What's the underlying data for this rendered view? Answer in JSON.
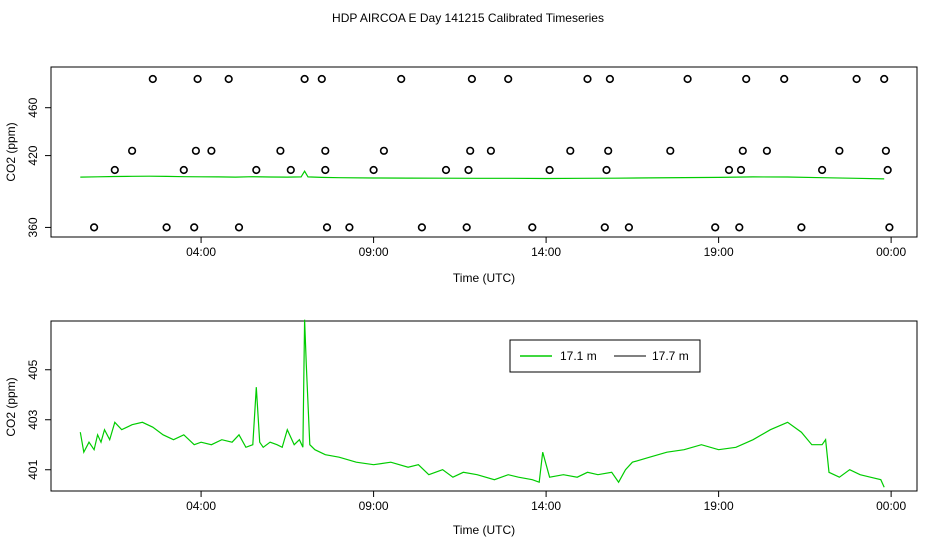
{
  "title": "HDP AIRCOA E  Day 141215  Calibrated Timeseries",
  "chart_data": [
    {
      "type": "scatter",
      "xlabel": "Time (UTC)",
      "ylabel": "CO2 (ppm)",
      "x_unit": "hours since 00:00 UTC",
      "xlim": [
        -0.35,
        24.75
      ],
      "ylim": [
        352,
        494
      ],
      "xticks": [
        4,
        9,
        14,
        19,
        24
      ],
      "xtick_labels": [
        "04:00",
        "09:00",
        "14:00",
        "19:00",
        "00:00"
      ],
      "yticks": [
        360,
        420,
        460
      ],
      "ytick_labels": [
        "360",
        "420",
        "460"
      ],
      "grid": false,
      "line_color": "#00cc00",
      "marker_color": "#000000",
      "line_series": {
        "name": "17.1 m",
        "x": [
          0.5,
          1.0,
          1.5,
          2.0,
          2.5,
          3.0,
          3.5,
          4.0,
          4.5,
          5.0,
          5.5,
          6.0,
          6.5,
          6.9,
          7.0,
          7.1,
          7.5,
          8.0,
          9.0,
          10.0,
          11.0,
          12.0,
          13.0,
          14.0,
          15.0,
          16.0,
          17.0,
          18.0,
          19.0,
          20.0,
          21.0,
          22.0,
          23.0,
          23.8
        ],
        "y": [
          402.0,
          402.3,
          402.5,
          402.7,
          402.8,
          402.6,
          402.4,
          402.3,
          402.2,
          402.0,
          402.4,
          402.1,
          402.0,
          402.2,
          407.0,
          402.2,
          401.8,
          401.5,
          401.3,
          401.2,
          401.1,
          401.0,
          401.0,
          400.9,
          401.0,
          401.1,
          401.4,
          401.6,
          401.8,
          402.2,
          402.1,
          401.5,
          401.0,
          400.5
        ]
      },
      "marker_series": {
        "type": "circles",
        "x": [
          0.9,
          1.5,
          2.0,
          2.6,
          3.0,
          3.5,
          3.8,
          3.85,
          3.9,
          4.3,
          4.8,
          5.1,
          5.6,
          6.3,
          6.6,
          7.0,
          7.5,
          7.6,
          7.6,
          7.65,
          8.3,
          9.0,
          9.3,
          9.8,
          10.4,
          11.1,
          11.7,
          11.75,
          11.8,
          11.85,
          12.4,
          12.9,
          13.6,
          14.1,
          14.7,
          15.2,
          15.7,
          15.75,
          15.8,
          15.85,
          16.4,
          17.6,
          18.1,
          18.9,
          19.3,
          19.6,
          19.65,
          19.7,
          19.8,
          20.4,
          20.9,
          21.4,
          22.0,
          22.5,
          23.0,
          23.8,
          23.85,
          23.9,
          23.95
        ]
      }
    },
    {
      "type": "line",
      "xlabel": "Time (UTC)",
      "ylabel": "CO2 (ppm)",
      "x_unit": "hours since 00:00 UTC",
      "xlim": [
        -0.35,
        24.75
      ],
      "ylim": [
        400.15,
        406.95
      ],
      "xticks": [
        4,
        9,
        14,
        19,
        24
      ],
      "xtick_labels": [
        "04:00",
        "09:00",
        "14:00",
        "19:00",
        "00:00"
      ],
      "yticks": [
        401,
        403,
        405
      ],
      "ytick_labels": [
        "401",
        "403",
        "405"
      ],
      "grid": false,
      "legend_position": "top-right",
      "series": [
        {
          "name": "17.1 m",
          "color": "#00cc00",
          "x": [
            0.5,
            0.6,
            0.75,
            0.9,
            1.0,
            1.1,
            1.2,
            1.35,
            1.5,
            1.7,
            2.0,
            2.3,
            2.6,
            2.9,
            3.2,
            3.5,
            3.8,
            4.0,
            4.3,
            4.6,
            4.9,
            5.1,
            5.3,
            5.5,
            5.6,
            5.7,
            5.8,
            6.0,
            6.2,
            6.35,
            6.5,
            6.7,
            6.85,
            6.95,
            7.0,
            7.05,
            7.15,
            7.3,
            7.6,
            8.0,
            8.5,
            9.0,
            9.5,
            10.0,
            10.3,
            10.6,
            11.0,
            11.3,
            11.6,
            12.0,
            12.5,
            12.9,
            13.2,
            13.6,
            13.8,
            13.9,
            14.1,
            14.5,
            14.9,
            15.2,
            15.5,
            15.9,
            16.1,
            16.3,
            16.5,
            17.0,
            17.5,
            18.0,
            18.5,
            19.0,
            19.5,
            20.0,
            20.5,
            21.0,
            21.4,
            21.7,
            22.0,
            22.1,
            22.2,
            22.5,
            22.8,
            23.1,
            23.4,
            23.7,
            23.8
          ],
          "y": [
            402.5,
            401.7,
            402.1,
            401.8,
            402.4,
            402.1,
            402.6,
            402.2,
            402.9,
            402.6,
            402.8,
            402.9,
            402.7,
            402.4,
            402.2,
            402.4,
            402.0,
            402.1,
            402.0,
            402.2,
            402.1,
            402.4,
            401.9,
            402.0,
            404.3,
            402.1,
            401.9,
            402.1,
            402.0,
            401.9,
            402.6,
            402.0,
            402.2,
            401.9,
            407.0,
            405.2,
            402.0,
            401.8,
            401.6,
            401.5,
            401.3,
            401.2,
            401.3,
            401.1,
            401.2,
            400.8,
            401.0,
            400.7,
            400.9,
            400.8,
            400.6,
            400.8,
            400.7,
            400.6,
            400.5,
            401.7,
            400.7,
            400.8,
            400.7,
            400.9,
            400.8,
            400.9,
            400.5,
            401.0,
            401.3,
            401.5,
            401.7,
            401.8,
            402.0,
            401.8,
            401.9,
            402.2,
            402.6,
            402.9,
            402.5,
            402.0,
            402.0,
            402.2,
            400.9,
            400.7,
            401.0,
            400.8,
            400.7,
            400.6,
            400.3
          ]
        },
        {
          "name": "17.7 m",
          "color": "#000000",
          "x": [],
          "y": []
        }
      ]
    }
  ]
}
